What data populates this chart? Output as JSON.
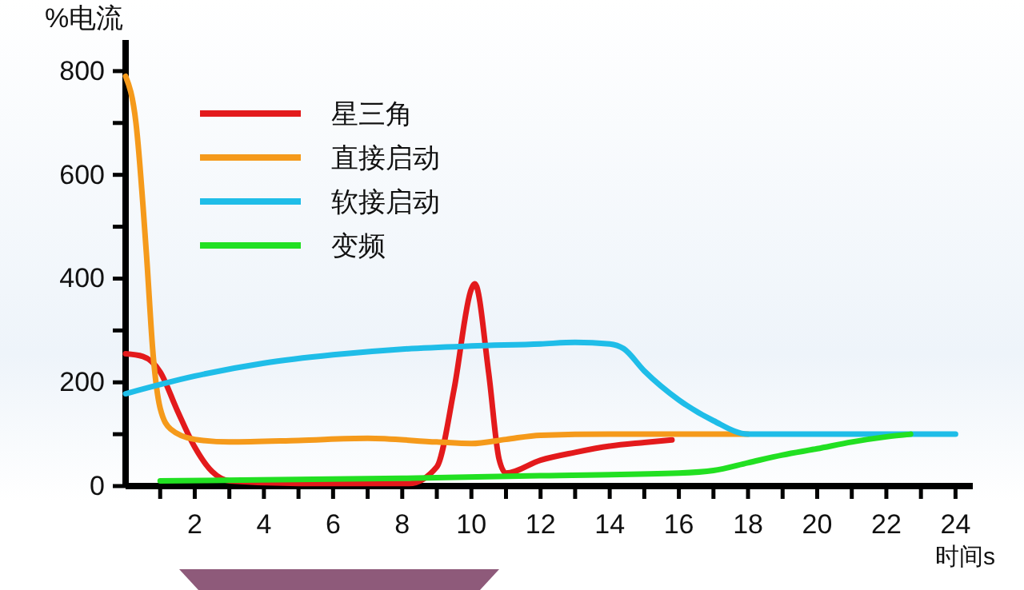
{
  "chart_data": {
    "type": "line",
    "xlabel": "时间s",
    "ylabel": "%电流",
    "xlim": [
      0,
      24.5
    ],
    "ylim": [
      0,
      860
    ],
    "xticks": [
      {
        "value": 1,
        "label": null
      },
      2,
      {
        "value": 3,
        "label": null
      },
      4,
      {
        "value": 5,
        "label": null
      },
      6,
      {
        "value": 7,
        "label": null
      },
      8,
      {
        "value": 9,
        "label": null
      },
      10,
      {
        "value": 11,
        "label": null
      },
      12,
      {
        "value": 13,
        "label": null
      },
      14,
      {
        "value": 15,
        "label": null
      },
      16,
      {
        "value": 17,
        "label": null
      },
      18,
      {
        "value": 19,
        "label": null
      },
      20,
      {
        "value": 21,
        "label": null
      },
      22,
      {
        "value": 23,
        "label": null
      },
      24
    ],
    "yticks": [
      0,
      {
        "value": 100,
        "label": null
      },
      200,
      {
        "value": 300,
        "label": null
      },
      400,
      {
        "value": 500,
        "label": null
      },
      600,
      {
        "value": 700,
        "label": null
      },
      800
    ],
    "grid": false,
    "legend": "top left",
    "marker": "none",
    "line_style": "solid",
    "series": [
      {
        "name": "星三角",
        "color": "#e31a1c",
        "x": [
          0,
          0.5,
          1,
          1.5,
          2,
          2.5,
          3,
          5,
          8.2,
          9,
          9.5,
          10,
          10.1,
          10.5,
          10.8,
          11,
          12,
          13,
          14,
          15,
          15.8
        ],
        "values": [
          255,
          250,
          220,
          145,
          75,
          28,
          10,
          5,
          5,
          37,
          187,
          380,
          390,
          218,
          52,
          25,
          50,
          65,
          77,
          84,
          89
        ]
      },
      {
        "name": "直接启动",
        "color": "#f59a1b",
        "x": [
          0,
          0.3,
          0.6,
          0.8,
          1,
          1.3,
          2,
          3,
          5,
          7,
          9,
          10,
          11,
          12,
          14,
          18
        ],
        "values": [
          790,
          700,
          450,
          250,
          150,
          110,
          90,
          85,
          88,
          92,
          85,
          82,
          90,
          98,
          100,
          100
        ]
      },
      {
        "name": "软接启动",
        "color": "#1fbde8",
        "x": [
          0,
          2,
          4,
          6,
          8,
          10,
          12,
          13,
          14,
          14.4,
          15,
          16,
          17,
          18,
          24
        ],
        "values": [
          178,
          212,
          237,
          253,
          264,
          270,
          274,
          277,
          274,
          265,
          222,
          166,
          126,
          100,
          100
        ]
      },
      {
        "name": "变频",
        "color": "#22e022",
        "x": [
          1,
          8,
          12,
          16,
          17,
          18,
          19,
          20,
          21,
          22,
          22.7
        ],
        "values": [
          10,
          15,
          20,
          25,
          30,
          45,
          60,
          72,
          85,
          95,
          100
        ]
      }
    ]
  }
}
